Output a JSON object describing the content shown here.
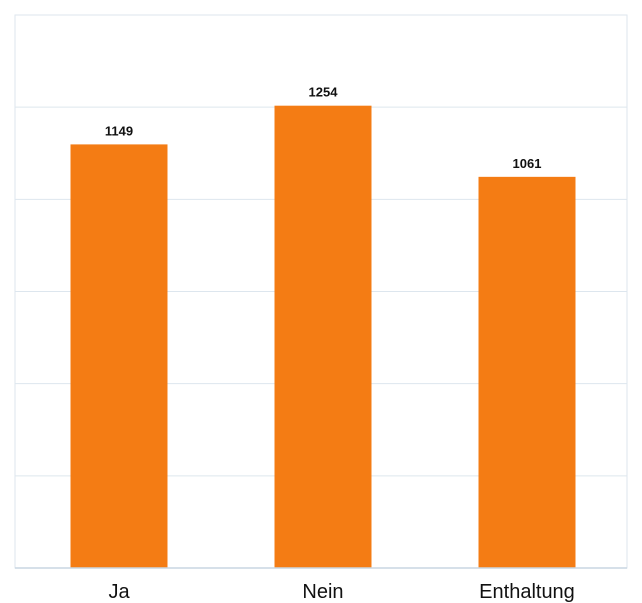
{
  "chart_data": {
    "type": "bar",
    "categories": [
      "Ja",
      "Nein",
      "Enthaltung"
    ],
    "values": [
      1149,
      1254,
      1061
    ],
    "data_labels": [
      "1149",
      "1254",
      "1061"
    ],
    "ylim": [
      0,
      1500
    ],
    "y_grid_step": 250,
    "grid": true,
    "legend": "none",
    "title": "",
    "xlabel": "",
    "ylabel": "",
    "bar_color": "#f47c14"
  }
}
